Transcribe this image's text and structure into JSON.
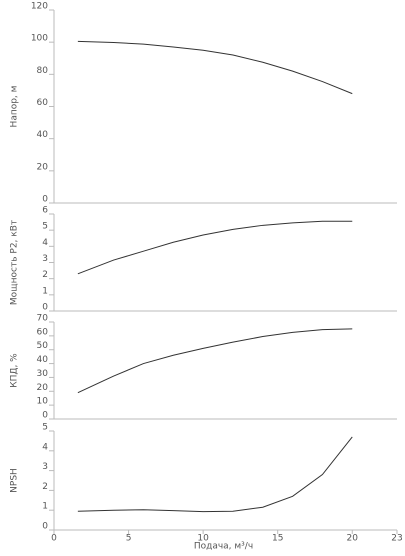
{
  "chart_data": [
    {
      "type": "line",
      "ylabel": "Напор, м",
      "x": [
        1.6,
        4,
        6,
        8,
        10,
        12,
        14,
        16,
        18,
        20
      ],
      "series": [
        {
          "color": "#333333",
          "values": [
            100.5,
            99.8,
            98.8,
            97,
            95,
            92,
            87.5,
            82,
            75.5,
            68
          ]
        }
      ],
      "xlim": [
        0,
        23
      ],
      "ylim": [
        0,
        120
      ],
      "yticks": [
        0,
        20,
        40,
        60,
        80,
        100,
        120
      ]
    },
    {
      "type": "line",
      "ylabel": "Мощность Р2, кВт",
      "x": [
        1.6,
        4,
        6,
        8,
        10,
        12,
        14,
        16,
        18,
        20
      ],
      "series": [
        {
          "color": "#333333",
          "values": [
            2.3,
            3.15,
            3.7,
            4.25,
            4.7,
            5.05,
            5.3,
            5.45,
            5.55,
            5.55
          ]
        }
      ],
      "xlim": [
        0,
        23
      ],
      "ylim": [
        0,
        6
      ],
      "yticks": [
        0,
        1,
        2,
        3,
        4,
        5,
        6
      ]
    },
    {
      "type": "line",
      "ylabel": "КПД, %",
      "x": [
        1.6,
        4,
        6,
        8,
        10,
        12,
        14,
        16,
        18,
        20
      ],
      "series": [
        {
          "color": "#333333",
          "values": [
            19,
            31,
            40,
            46,
            51,
            55.5,
            59.5,
            62.5,
            64.5,
            65
          ]
        }
      ],
      "xlim": [
        0,
        23
      ],
      "ylim": [
        0,
        70
      ],
      "yticks": [
        0,
        10,
        20,
        30,
        40,
        50,
        60,
        70
      ]
    },
    {
      "type": "line",
      "ylabel": "NPSH",
      "xlabel": "Подача, м³/ч",
      "x": [
        1.6,
        4,
        6,
        8,
        10,
        12,
        14,
        16,
        18,
        20
      ],
      "series": [
        {
          "color": "#333333",
          "values": [
            0.95,
            1.0,
            1.02,
            0.98,
            0.93,
            0.95,
            1.15,
            1.7,
            2.8,
            4.7
          ]
        }
      ],
      "xlim": [
        0,
        23
      ],
      "ylim": [
        0,
        5
      ],
      "yticks": [
        0,
        1,
        2,
        3,
        4,
        5
      ],
      "xticks": [
        0,
        5,
        10,
        15,
        20,
        23
      ]
    }
  ]
}
